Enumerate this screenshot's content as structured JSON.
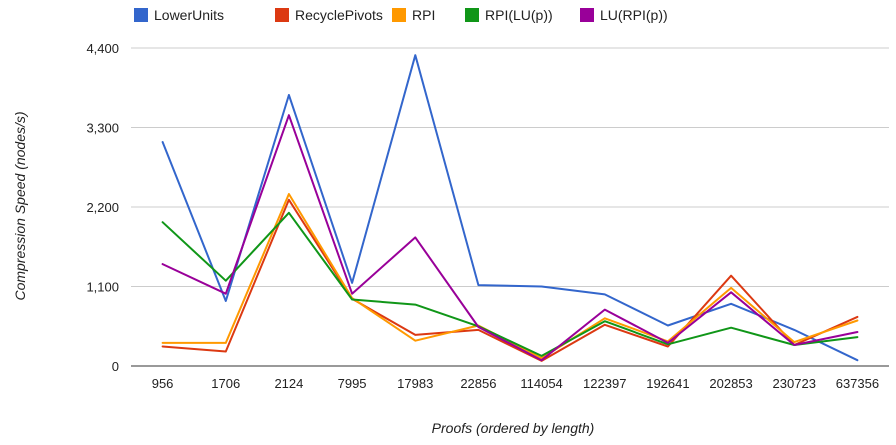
{
  "chart_data": {
    "type": "line",
    "xlabel": "Proofs (ordered by length)",
    "ylabel": "Compression Speed (nodes/s)",
    "ylim": [
      0,
      4400
    ],
    "yticks": [
      0,
      1100,
      2200,
      3300,
      4400
    ],
    "ytick_labels": [
      "0",
      "1,100",
      "2,200",
      "3,300",
      "4,400"
    ],
    "grid": true,
    "legend_position": "top",
    "categories": [
      "956",
      "1706",
      "2124",
      "7995",
      "17983",
      "22856",
      "114054",
      "122397",
      "192641",
      "202853",
      "230723",
      "637356"
    ],
    "series": [
      {
        "name": "LowerUnits",
        "color": "#3366cc",
        "values": [
          3100,
          900,
          3750,
          1150,
          4300,
          1120,
          1100,
          990,
          560,
          860,
          500,
          80
        ]
      },
      {
        "name": "RecyclePivots",
        "color": "#dc3912",
        "values": [
          270,
          200,
          2300,
          930,
          430,
          500,
          70,
          570,
          270,
          1250,
          290,
          680
        ]
      },
      {
        "name": "RPI",
        "color": "#ff9900",
        "values": [
          320,
          320,
          2380,
          940,
          350,
          560,
          110,
          660,
          340,
          1080,
          330,
          630
        ]
      },
      {
        "name": "RPI(LU(p))",
        "color": "#109618",
        "values": [
          1990,
          1180,
          2120,
          920,
          850,
          550,
          140,
          620,
          300,
          530,
          290,
          400
        ]
      },
      {
        "name": "LU(RPI(p))",
        "color": "#990099",
        "values": [
          1410,
          1000,
          3470,
          1000,
          1780,
          540,
          80,
          780,
          320,
          1020,
          290,
          470
        ]
      }
    ]
  }
}
